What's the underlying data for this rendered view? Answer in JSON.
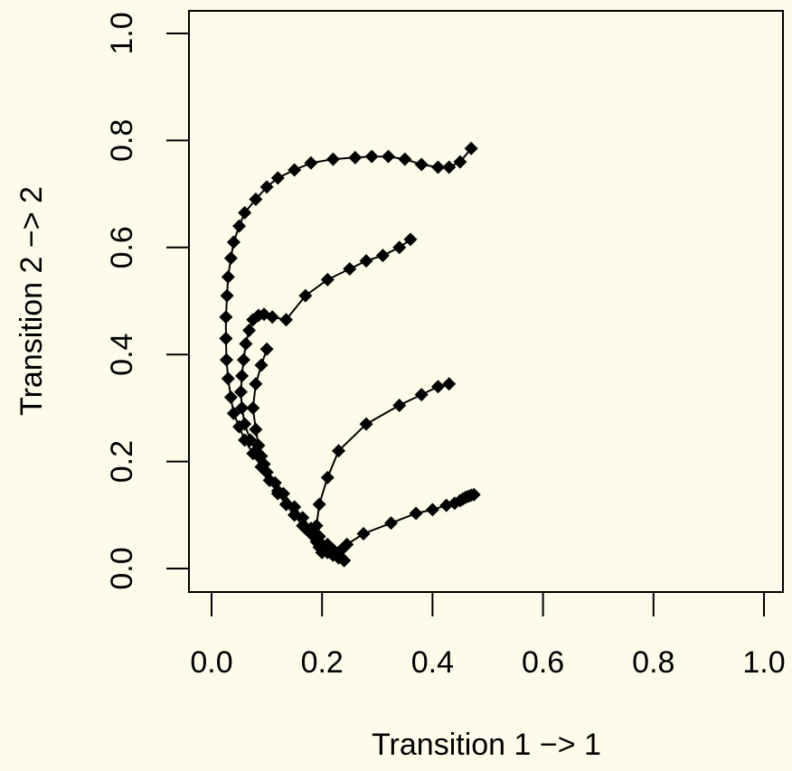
{
  "chart_data": {
    "type": "line",
    "xlabel": "Transition 1 −> 1",
    "ylabel": "Transition 2 −> 2",
    "xlim": [
      0,
      1
    ],
    "ylim": [
      0,
      1
    ],
    "x_ticks": [
      "0.0",
      "0.2",
      "0.4",
      "0.6",
      "0.8",
      "1.0"
    ],
    "y_ticks": [
      "0.0",
      "0.2",
      "0.4",
      "0.6",
      "0.8",
      "1.0"
    ],
    "grid": false,
    "marker": "filled diamond",
    "background_color": "#fdfbe9",
    "series": [
      {
        "x": [
          0.47,
          0.45,
          0.43,
          0.41,
          0.38,
          0.35,
          0.32,
          0.29,
          0.26,
          0.22,
          0.18,
          0.15,
          0.12,
          0.1,
          0.08,
          0.06,
          0.05,
          0.04,
          0.035,
          0.03,
          0.028,
          0.026,
          0.026,
          0.027,
          0.03,
          0.035,
          0.04,
          0.05,
          0.06,
          0.075,
          0.09,
          0.105,
          0.12,
          0.135,
          0.15,
          0.165,
          0.18,
          0.19,
          0.2,
          0.21,
          0.22,
          0.23,
          0.24
        ],
        "y": [
          0.785,
          0.76,
          0.75,
          0.75,
          0.755,
          0.765,
          0.77,
          0.77,
          0.768,
          0.765,
          0.758,
          0.745,
          0.73,
          0.713,
          0.69,
          0.665,
          0.64,
          0.61,
          0.58,
          0.545,
          0.51,
          0.47,
          0.43,
          0.39,
          0.355,
          0.32,
          0.29,
          0.265,
          0.24,
          0.215,
          0.19,
          0.165,
          0.14,
          0.12,
          0.1,
          0.08,
          0.065,
          0.05,
          0.04,
          0.03,
          0.025,
          0.02,
          0.015
        ]
      },
      {
        "x": [
          0.36,
          0.34,
          0.31,
          0.28,
          0.25,
          0.21,
          0.17,
          0.135,
          0.11,
          0.095,
          0.085,
          0.075,
          0.068,
          0.062,
          0.058,
          0.055,
          0.053,
          0.055,
          0.06,
          0.07,
          0.085,
          0.1,
          0.115,
          0.13,
          0.15,
          0.165,
          0.18,
          0.195,
          0.21,
          0.22,
          0.23,
          0.24
        ],
        "y": [
          0.615,
          0.6,
          0.585,
          0.575,
          0.56,
          0.54,
          0.51,
          0.465,
          0.47,
          0.475,
          0.473,
          0.465,
          0.445,
          0.42,
          0.39,
          0.36,
          0.33,
          0.3,
          0.27,
          0.24,
          0.21,
          0.18,
          0.16,
          0.14,
          0.115,
          0.095,
          0.075,
          0.06,
          0.045,
          0.035,
          0.025,
          0.015
        ]
      },
      {
        "x": [
          0.43,
          0.41,
          0.38,
          0.34,
          0.28,
          0.23,
          0.21,
          0.195,
          0.19,
          0.19,
          0.195,
          0.2
        ],
        "y": [
          0.345,
          0.34,
          0.325,
          0.305,
          0.27,
          0.22,
          0.17,
          0.12,
          0.08,
          0.06,
          0.04,
          0.03
        ]
      },
      {
        "x": [
          0.475,
          0.47,
          0.465,
          0.46,
          0.455,
          0.45,
          0.44,
          0.425,
          0.4,
          0.37,
          0.325,
          0.275,
          0.245,
          0.235,
          0.23
        ],
        "y": [
          0.138,
          0.137,
          0.135,
          0.133,
          0.13,
          0.127,
          0.122,
          0.118,
          0.11,
          0.103,
          0.085,
          0.065,
          0.045,
          0.035,
          0.025
        ]
      },
      {
        "x": [
          0.1,
          0.09,
          0.08,
          0.075,
          0.08,
          0.085,
          0.09,
          0.095,
          0.1,
          0.105,
          0.12,
          0.135,
          0.15,
          0.17,
          0.19,
          0.21,
          0.23
        ],
        "y": [
          0.41,
          0.38,
          0.345,
          0.3,
          0.26,
          0.23,
          0.21,
          0.195,
          0.18,
          0.165,
          0.145,
          0.12,
          0.1,
          0.075,
          0.055,
          0.04,
          0.025
        ]
      }
    ]
  }
}
